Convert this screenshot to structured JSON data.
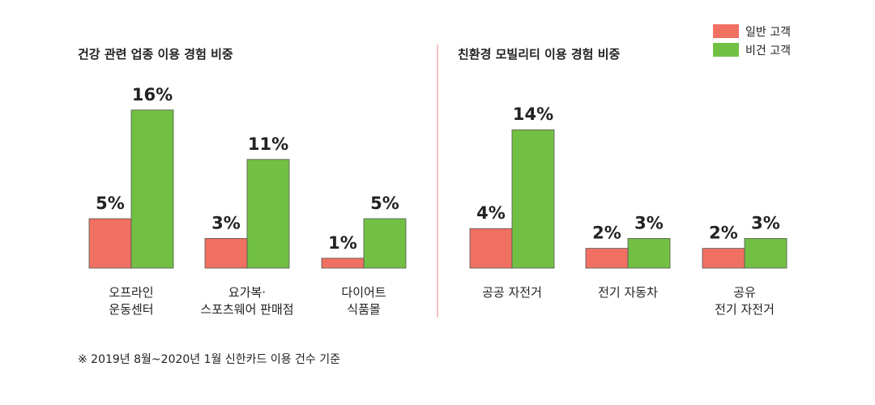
{
  "footnote": "※ 2019년 8월~2020년 1월 신한카드 이용 건수 기준",
  "legend": [
    {
      "label": "일반 고객",
      "color": "#f07062"
    },
    {
      "label": "비건 고객",
      "color": "#72c043"
    }
  ],
  "chart_data": [
    {
      "type": "bar",
      "title": "건강 관련 업종 이용 경험 비중",
      "unit": "%",
      "categories": [
        [
          "오프라인",
          "운동센터"
        ],
        [
          "요가복·",
          "스포츠웨어 판매점"
        ],
        [
          "다이어트",
          "식품몰"
        ]
      ],
      "series": [
        {
          "name": "일반 고객",
          "values": [
            5,
            3,
            1
          ]
        },
        {
          "name": "비건 고객",
          "values": [
            16,
            11,
            5
          ]
        }
      ]
    },
    {
      "type": "bar",
      "title": "친환경 모빌리티 이용 경험 비중",
      "unit": "%",
      "categories": [
        [
          "공공 자전거"
        ],
        [
          "전기 자동차"
        ],
        [
          "공유",
          "전기 자전거"
        ]
      ],
      "series": [
        {
          "name": "일반 고객",
          "values": [
            4,
            2,
            2
          ]
        },
        {
          "name": "비건 고객",
          "values": [
            14,
            3,
            3
          ]
        }
      ]
    }
  ]
}
